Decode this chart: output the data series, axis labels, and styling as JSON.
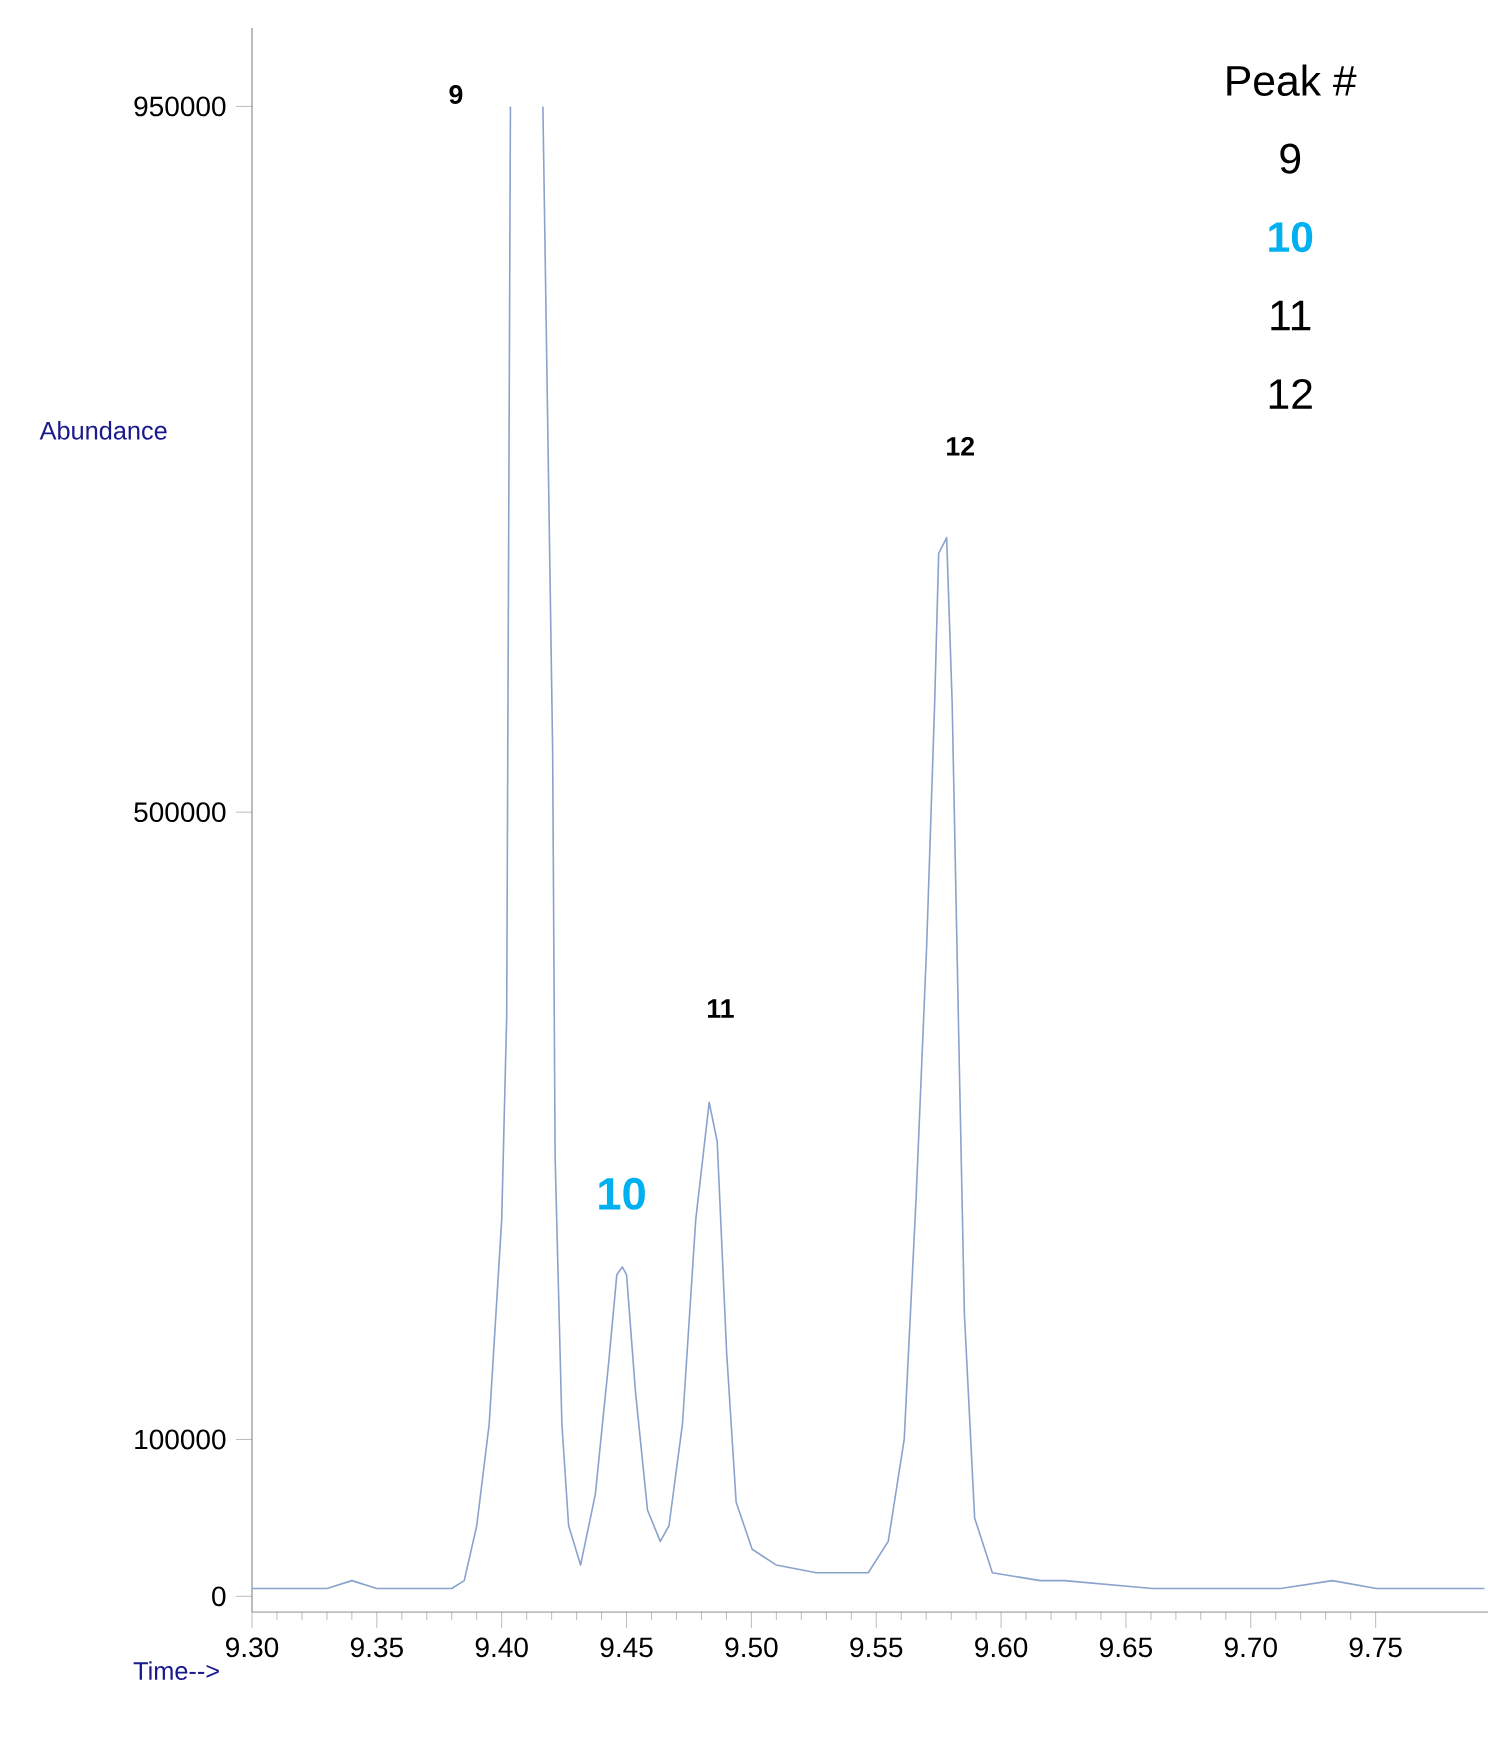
{
  "chart_data": {
    "type": "line",
    "xlabel": "Time-->",
    "ylabel": "Abundance",
    "color": "#8aa3cc",
    "x": [
      9.3,
      9.31,
      9.33,
      9.34,
      9.35,
      9.37,
      9.38,
      9.385,
      9.39,
      9.395,
      9.4,
      9.402,
      9.4035,
      9.41,
      9.4165,
      9.4204,
      9.4214,
      9.4241,
      9.4268,
      9.4316,
      9.4375,
      9.4429,
      9.4461,
      9.4483,
      9.45,
      9.4536,
      9.4584,
      9.4635,
      9.467,
      9.4724,
      9.4777,
      9.4831,
      9.4863,
      9.4901,
      9.4939,
      9.5003,
      9.5099,
      9.526,
      9.5356,
      9.5468,
      9.5548,
      9.5612,
      9.566,
      9.5702,
      9.5734,
      9.575,
      9.5782,
      9.5804,
      9.583,
      9.5853,
      9.5894,
      9.5965,
      9.6157,
      9.6253,
      9.6606,
      9.7119,
      9.7327,
      9.7503,
      9.7663,
      9.7936
    ],
    "values": [
      5000,
      5000,
      5000,
      10000,
      5000,
      5000,
      5000,
      10000,
      45000,
      110000,
      240000,
      370000,
      950000,
      null,
      950000,
      540000,
      280000,
      110000,
      45000,
      20000,
      65000,
      150000,
      205000,
      210000,
      205000,
      130000,
      55000,
      35000,
      45000,
      110000,
      240000,
      315000,
      290000,
      155000,
      60000,
      30000,
      20000,
      15000,
      15000,
      15000,
      35000,
      100000,
      255000,
      415000,
      570000,
      665000,
      675000,
      570000,
      360000,
      180000,
      50000,
      15000,
      10000,
      10000,
      5000,
      5000,
      10000,
      5000,
      5000,
      5000
    ],
    "xlim": [
      9.3,
      9.795
    ],
    "ylim": [
      -10000,
      1000000
    ],
    "xticks": [
      {
        "value": 9.3,
        "label": "9.30"
      },
      {
        "value": 9.35,
        "label": "9.35"
      },
      {
        "value": 9.4,
        "label": "9.40"
      },
      {
        "value": 9.45,
        "label": "9.45"
      },
      {
        "value": 9.5,
        "label": "9.50"
      },
      {
        "value": 9.55,
        "label": "9.55"
      },
      {
        "value": 9.6,
        "label": "9.60"
      },
      {
        "value": 9.65,
        "label": "9.65"
      },
      {
        "value": 9.7,
        "label": "9.70"
      },
      {
        "value": 9.75,
        "label": "9.75"
      }
    ],
    "yticks": [
      0,
      100000,
      500000,
      950000
    ],
    "annotations": [
      "9",
      "10",
      "11",
      "12",
      "Peak #",
      "9",
      "10",
      "11",
      "12"
    ]
  }
}
